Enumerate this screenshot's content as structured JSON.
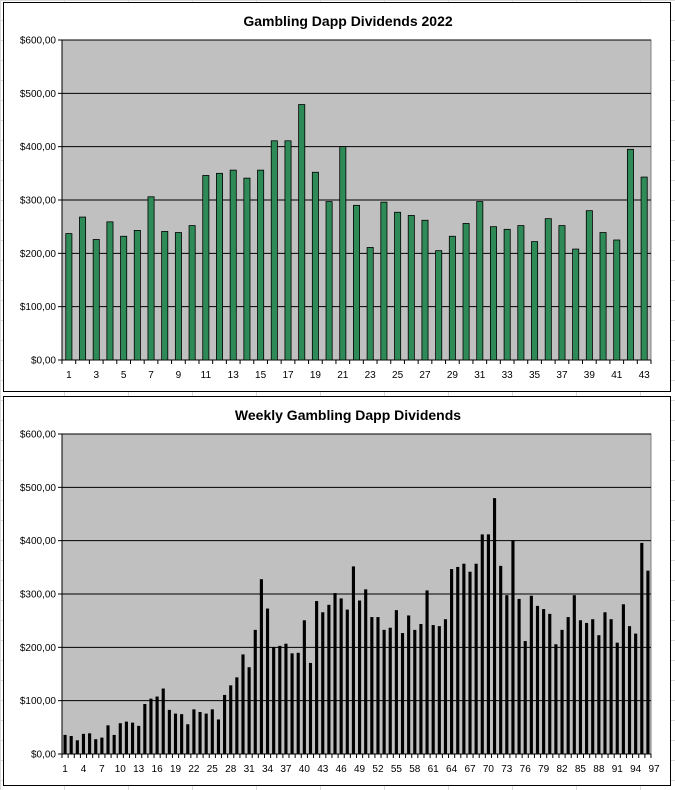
{
  "chart_data": [
    {
      "type": "bar",
      "title": "Gambling Dapp Dividends 2022",
      "xlabel": "",
      "ylabel": "",
      "ylim": [
        0,
        600
      ],
      "yticks": [
        "$0,00",
        "$100,00",
        "$200,00",
        "$300,00",
        "$400,00",
        "$500,00",
        "$600,00"
      ],
      "xtick_labels": [
        "1",
        "3",
        "5",
        "7",
        "9",
        "11",
        "13",
        "15",
        "17",
        "19",
        "21",
        "23",
        "25",
        "27",
        "29",
        "31",
        "33",
        "35",
        "37",
        "39",
        "41",
        "43"
      ],
      "xtick_step": 2,
      "grid": true,
      "plot_bg": "#c0c0c0",
      "bar_color": "#2e8b57",
      "bar_edge": "#000000",
      "values": [
        237,
        268,
        226,
        259,
        232,
        243,
        306,
        241,
        239,
        252,
        346,
        350,
        356,
        341,
        356,
        411,
        411,
        479,
        352,
        297,
        400,
        290,
        211,
        296,
        277,
        271,
        262,
        205,
        232,
        256,
        297,
        250,
        245,
        252,
        222,
        265,
        252,
        208,
        280,
        239,
        225,
        395,
        343
      ]
    },
    {
      "type": "bar",
      "title": "Weekly Gambling Dapp Dividends",
      "xlabel": "",
      "ylabel": "",
      "ylim": [
        0,
        600
      ],
      "yticks": [
        "$0,00",
        "$100,00",
        "$200,00",
        "$300,00",
        "$400,00",
        "$500,00",
        "$600,00"
      ],
      "xtick_labels": [
        "1",
        "4",
        "7",
        "10",
        "13",
        "16",
        "19",
        "22",
        "25",
        "28",
        "31",
        "34",
        "37",
        "40",
        "43",
        "46",
        "49",
        "52",
        "55",
        "58",
        "61",
        "64",
        "67",
        "70",
        "73",
        "76",
        "79",
        "82",
        "85",
        "88",
        "91",
        "94",
        "97"
      ],
      "xtick_step": 3,
      "grid": true,
      "plot_bg": "#c0c0c0",
      "bar_color": "#000000",
      "bar_edge": "#000000",
      "values": [
        35,
        33,
        25,
        37,
        38,
        27,
        30,
        53,
        35,
        57,
        60,
        58,
        52,
        93,
        103,
        107,
        122,
        82,
        75,
        74,
        55,
        83,
        78,
        75,
        83,
        64,
        110,
        128,
        143,
        186,
        162,
        232,
        327,
        272,
        199,
        202,
        206,
        188,
        189,
        250,
        170,
        286,
        265,
        279,
        301,
        291,
        270,
        351,
        287,
        308,
        256,
        256,
        232,
        236,
        269,
        226,
        259,
        232,
        243,
        306,
        241,
        239,
        252,
        346,
        350,
        356,
        341,
        356,
        411,
        411,
        479,
        352,
        297,
        400,
        290,
        211,
        296,
        277,
        271,
        262,
        205,
        232,
        256,
        297,
        250,
        245,
        252,
        222,
        265,
        252,
        208,
        280,
        239,
        225,
        395,
        343
      ]
    }
  ]
}
